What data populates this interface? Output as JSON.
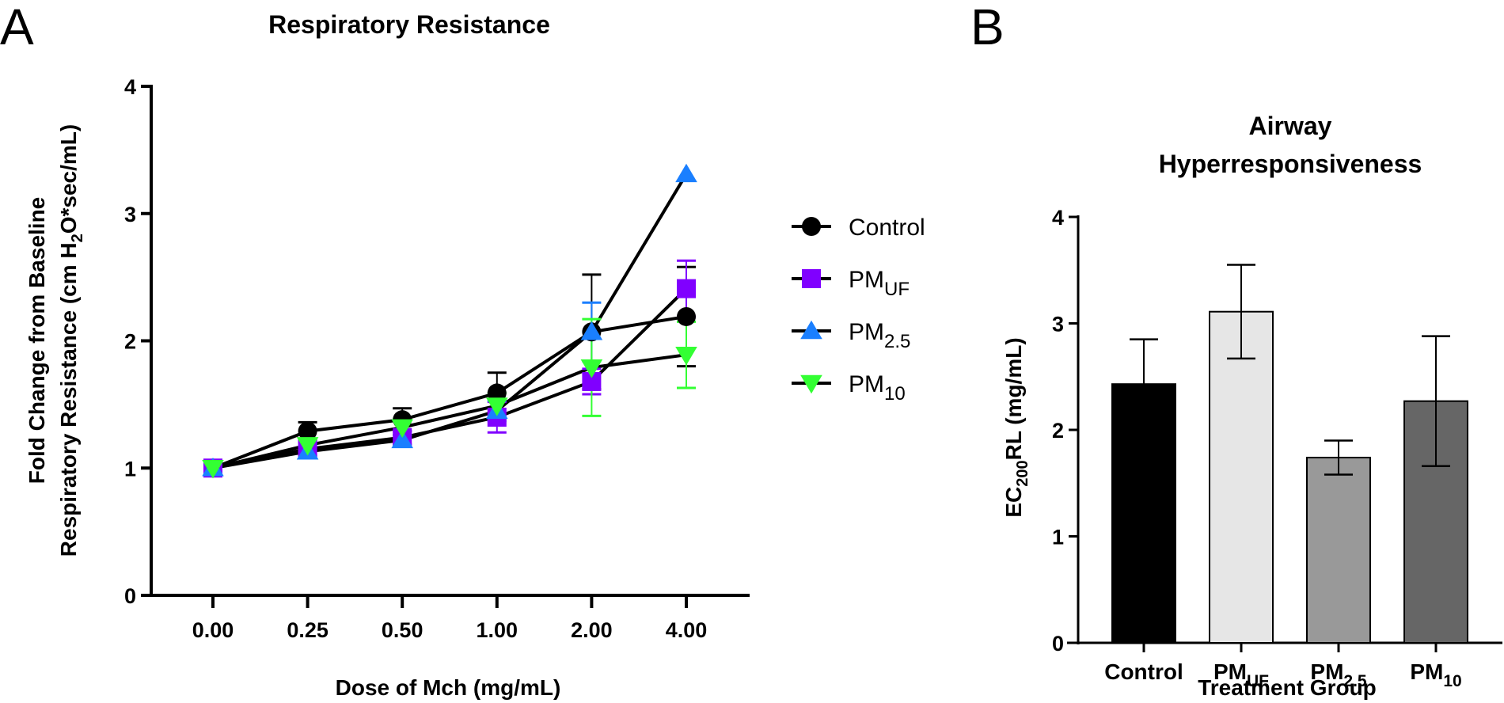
{
  "figure": {
    "panel_a_letter": "A",
    "panel_b_letter": "B"
  },
  "chart_data": [
    {
      "type": "line",
      "title": "Respiratory Resistance",
      "xlabel": "Dose of Mch (mg/mL)",
      "ylabel_line1": "Fold Change from Baseline",
      "ylabel_line2_pre": "Respiratory Resistance (cm H",
      "ylabel_line2_sub": "2",
      "ylabel_line2_post": "O*sec/mL)",
      "x": [
        "0.00",
        "0.25",
        "0.50",
        "1.00",
        "2.00",
        "4.00"
      ],
      "ylim": [
        0,
        4
      ],
      "yticks": [
        "0",
        "1",
        "2",
        "3",
        "4"
      ],
      "legend_position": "right",
      "series": [
        {
          "name": "Control",
          "name_main": "Control",
          "name_sub": "",
          "marker": "circle",
          "color": "#000000",
          "values": [
            1.0,
            1.29,
            1.38,
            1.59,
            2.07,
            2.19
          ],
          "err": [
            0,
            0.07,
            0.09,
            0.16,
            0.45,
            0.39
          ]
        },
        {
          "name": "PM_UF",
          "name_main": "PM",
          "name_sub": "UF",
          "marker": "square",
          "color": "#8000ff",
          "values": [
            1.0,
            1.15,
            1.24,
            1.4,
            1.68,
            2.41
          ],
          "err": [
            0,
            0.05,
            0.05,
            0.12,
            0.1,
            0.22
          ]
        },
        {
          "name": "PM_2.5",
          "name_main": "PM",
          "name_sub": "2.5",
          "marker": "triangle-up",
          "color": "#1a7fff",
          "values": [
            1.0,
            1.13,
            1.22,
            1.45,
            2.07,
            3.31
          ],
          "err": [
            0,
            0.04,
            0.04,
            0.08,
            0.23,
            0
          ]
        },
        {
          "name": "PM_10",
          "name_main": "PM",
          "name_sub": "10",
          "marker": "triangle-down",
          "color": "#33ff33",
          "values": [
            1.0,
            1.18,
            1.32,
            1.49,
            1.79,
            1.89
          ],
          "err": [
            0,
            0.05,
            0.06,
            0.1,
            0.38,
            0.26
          ]
        }
      ]
    },
    {
      "type": "bar",
      "title_line1": "Airway",
      "title_line2": "Hyperresponsiveness",
      "xlabel": "Treatment Group",
      "ylabel_pre": "EC",
      "ylabel_sub": "200",
      "ylabel_post": "RL (mg/mL)",
      "ylim": [
        0,
        4
      ],
      "yticks": [
        "0",
        "1",
        "2",
        "3",
        "4"
      ],
      "categories": [
        {
          "main": "Control",
          "sub": ""
        },
        {
          "main": "PM",
          "sub": "UF"
        },
        {
          "main": "PM",
          "sub": "2.5"
        },
        {
          "main": "PM",
          "sub": "10"
        }
      ],
      "values": [
        2.43,
        3.11,
        1.74,
        2.27
      ],
      "err": [
        0.42,
        0.44,
        0.16,
        0.61
      ],
      "colors": [
        "#000000",
        "#e6e6e6",
        "#999999",
        "#666666"
      ]
    }
  ]
}
